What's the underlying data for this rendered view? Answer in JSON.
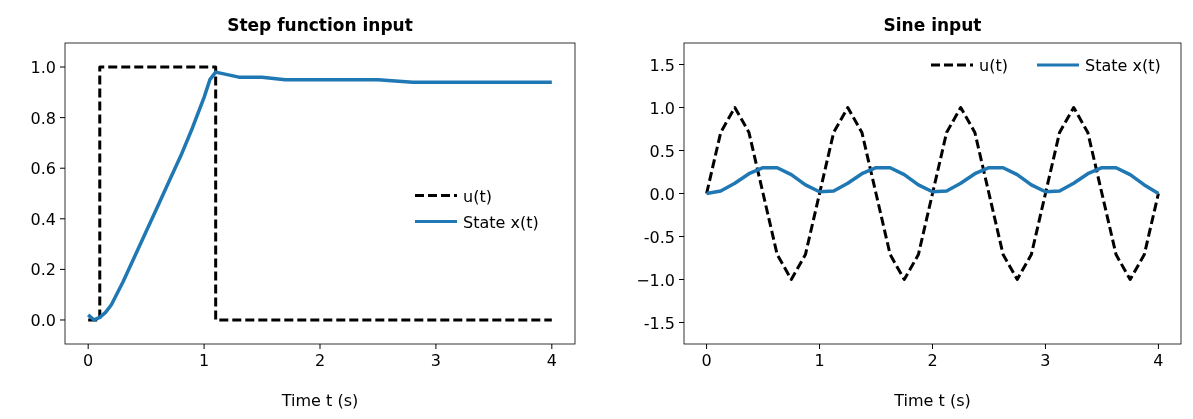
{
  "chart_data": [
    {
      "type": "line",
      "title": "Step function input",
      "xlabel": "Time t (s)",
      "xlim": [
        -0.2,
        4.2
      ],
      "ylim": [
        -0.095,
        1.095
      ],
      "xticks": [
        0,
        1,
        2,
        3,
        4
      ],
      "yticks": [
        {
          "value": 0,
          "label": "0.0"
        },
        0.2,
        0.4,
        0.6,
        0.8,
        {
          "value": 1,
          "label": "1.0"
        }
      ],
      "grid": false,
      "legend": "right",
      "series": [
        {
          "name": "u(t)",
          "color": "#000000",
          "line_style": "dashed",
          "x": [
            0,
            0.1,
            0.1,
            1.1,
            1.1,
            4
          ],
          "values": [
            0,
            0,
            1,
            1,
            0,
            0
          ]
        },
        {
          "name": "State x(t)",
          "color": "#1f77b4",
          "line_style": "solid",
          "x": [
            0,
            0.05,
            0.1,
            0.15,
            0.2,
            0.3,
            0.4,
            0.5,
            0.6,
            0.7,
            0.8,
            0.9,
            1.0,
            1.05,
            1.1,
            1.2,
            1.3,
            1.5,
            1.7,
            2.0,
            2.3,
            2.5,
            2.8,
            3.0,
            3.3,
            3.5,
            3.8,
            4.0
          ],
          "values": [
            0.02,
            0.0,
            0.01,
            0.03,
            0.06,
            0.15,
            0.25,
            0.35,
            0.45,
            0.55,
            0.65,
            0.76,
            0.88,
            0.95,
            0.98,
            0.97,
            0.96,
            0.96,
            0.95,
            0.95,
            0.95,
            0.95,
            0.94,
            0.94,
            0.94,
            0.94,
            0.94,
            0.94
          ]
        }
      ]
    },
    {
      "type": "line",
      "title": "Sine input",
      "xlabel": "Time t (s)",
      "xlim": [
        -0.2,
        4.2
      ],
      "ylim": [
        -1.75,
        1.75
      ],
      "xticks": [
        0,
        1,
        2,
        3,
        4
      ],
      "yticks": [
        -1.5,
        {
          "value": -1,
          "label": "−1.0"
        },
        -0.5,
        {
          "value": 0,
          "label": "0.0"
        },
        0.5,
        {
          "value": 1,
          "label": "1.0"
        },
        1.5
      ],
      "grid": false,
      "legend": "top right",
      "series": [
        {
          "name": "u(t)",
          "color": "#000000",
          "line_style": "dashed",
          "x": [
            0,
            0.125,
            0.25,
            0.375,
            0.5,
            0.625,
            0.75,
            0.875,
            1,
            1.125,
            1.25,
            1.375,
            1.5,
            1.625,
            1.75,
            1.875,
            2,
            2.125,
            2.25,
            2.375,
            2.5,
            2.625,
            2.75,
            2.875,
            3,
            3.125,
            3.25,
            3.375,
            3.5,
            3.625,
            3.75,
            3.875,
            4
          ],
          "values": [
            0,
            0.71,
            1,
            0.71,
            0,
            -0.71,
            -1,
            -0.71,
            0,
            0.71,
            1,
            0.71,
            0,
            -0.71,
            -1,
            -0.71,
            0,
            0.71,
            1,
            0.71,
            0,
            -0.71,
            -1,
            -0.71,
            0,
            0.71,
            1,
            0.71,
            0,
            -0.71,
            -1,
            -0.71,
            0
          ]
        },
        {
          "name": "State x(t)",
          "color": "#1f77b4",
          "line_style": "solid",
          "x": [
            0,
            0.125,
            0.25,
            0.375,
            0.5,
            0.625,
            0.75,
            0.875,
            1,
            1.125,
            1.25,
            1.375,
            1.5,
            1.625,
            1.75,
            1.875,
            2,
            2.125,
            2.25,
            2.375,
            2.5,
            2.625,
            2.75,
            2.875,
            3,
            3.125,
            3.25,
            3.375,
            3.5,
            3.625,
            3.75,
            3.875,
            4
          ],
          "values": [
            0,
            0.03,
            0.12,
            0.23,
            0.3,
            0.3,
            0.22,
            0.1,
            0.02,
            0.03,
            0.12,
            0.23,
            0.3,
            0.3,
            0.22,
            0.1,
            0.02,
            0.03,
            0.12,
            0.23,
            0.3,
            0.3,
            0.22,
            0.1,
            0.02,
            0.03,
            0.12,
            0.23,
            0.3,
            0.3,
            0.22,
            0.1,
            0.0
          ]
        }
      ]
    }
  ]
}
